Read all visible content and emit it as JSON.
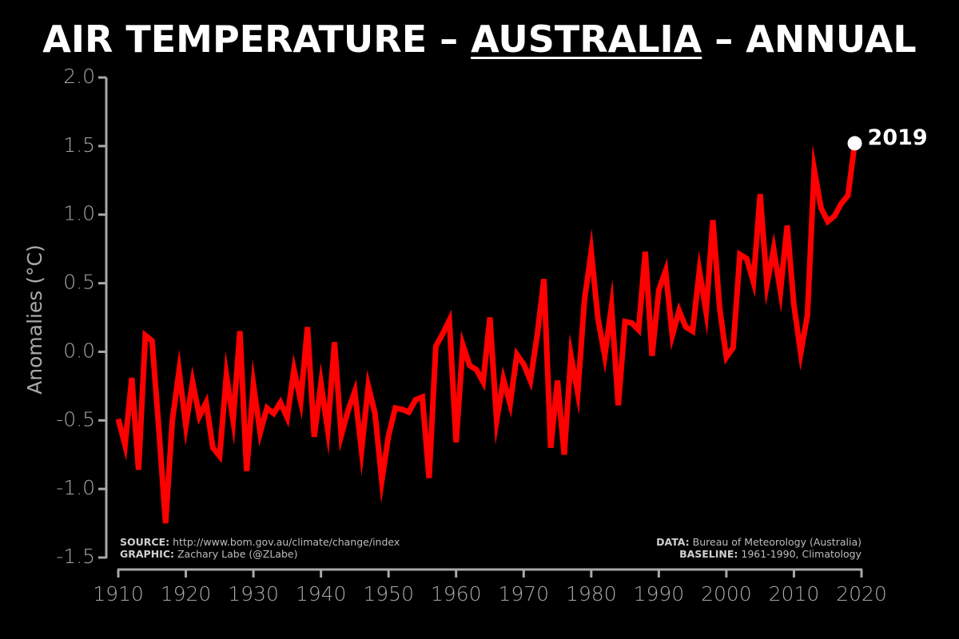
{
  "title": {
    "part1": "AIR TEMPERATURE – ",
    "part2": "AUSTRALIA",
    "part3": " – ANNUAL"
  },
  "credits": {
    "source_key": "SOURCE:",
    "source_val": " http://www.bom.gov.au/climate/change/index",
    "graphic_key": "GRAPHIC:",
    "graphic_val": " Zachary Labe (@ZLabe)",
    "data_key": "DATA:",
    "data_val": " Bureau of Meteorology (Australia)",
    "baseline_key": "BASELINE:",
    "baseline_val": " 1961-1990, Climatology"
  },
  "colors": {
    "background": "#000000",
    "line": "#ff0000",
    "axis": "#a9a9a9",
    "marker": "#ffffff"
  },
  "chart_data": {
    "type": "line",
    "title": "AIR TEMPERATURE – AUSTRALIA – ANNUAL",
    "xlabel": "",
    "ylabel": "Anomalies (°C)",
    "xlim": [
      1910,
      2020
    ],
    "ylim": [
      -1.5,
      2.0
    ],
    "xticks": [
      "1910",
      "1920",
      "1930",
      "1940",
      "1950",
      "1960",
      "1970",
      "1980",
      "1990",
      "2000",
      "2010",
      "2020"
    ],
    "yticks": [
      "-1.5",
      "-1.0",
      "-0.5",
      "0.0",
      "0.5",
      "1.0",
      "1.5",
      "2.0"
    ],
    "grid": false,
    "end_label": "2019",
    "series": [
      {
        "x": [
          1910,
          1911,
          1912,
          1913,
          1914,
          1915,
          1916,
          1917,
          1918,
          1919,
          1920,
          1921,
          1922,
          1923,
          1924,
          1925,
          1926,
          1927,
          1928,
          1929,
          1930,
          1931,
          1932,
          1933,
          1934,
          1935,
          1936,
          1937,
          1938,
          1939,
          1940,
          1941,
          1942,
          1943,
          1944,
          1945,
          1946,
          1947,
          1948,
          1949,
          1950,
          1951,
          1952,
          1953,
          1954,
          1955,
          1956,
          1957,
          1958,
          1959,
          1960,
          1961,
          1962,
          1963,
          1964,
          1965,
          1966,
          1967,
          1968,
          1969,
          1970,
          1971,
          1972,
          1973,
          1974,
          1975,
          1976,
          1977,
          1978,
          1979,
          1980,
          1981,
          1982,
          1983,
          1984,
          1985,
          1986,
          1987,
          1988,
          1989,
          1990,
          1991,
          1992,
          1993,
          1994,
          1995,
          1996,
          1997,
          1998,
          1999,
          2000,
          2001,
          2002,
          2003,
          2004,
          2005,
          2006,
          2007,
          2008,
          2009,
          2010,
          2011,
          2012,
          2013,
          2014,
          2015,
          2016,
          2017,
          2018,
          2019
        ],
        "values": [
          -0.49,
          -0.68,
          -0.19,
          -0.86,
          0.12,
          0.08,
          -0.56,
          -1.25,
          -0.5,
          -0.14,
          -0.54,
          -0.22,
          -0.47,
          -0.37,
          -0.7,
          -0.76,
          -0.17,
          -0.5,
          0.15,
          -0.87,
          -0.24,
          -0.59,
          -0.41,
          -0.45,
          -0.37,
          -0.48,
          -0.13,
          -0.36,
          0.18,
          -0.62,
          -0.23,
          -0.57,
          0.07,
          -0.61,
          -0.43,
          -0.29,
          -0.72,
          -0.25,
          -0.45,
          -0.94,
          -0.61,
          -0.41,
          -0.42,
          -0.44,
          -0.35,
          -0.33,
          -0.92,
          0.04,
          0.13,
          0.23,
          -0.66,
          0.05,
          -0.1,
          -0.13,
          -0.22,
          0.25,
          -0.5,
          -0.2,
          -0.38,
          -0.02,
          -0.09,
          -0.21,
          0.12,
          0.53,
          -0.7,
          -0.21,
          -0.75,
          -0.03,
          -0.3,
          0.38,
          0.73,
          0.24,
          -0.03,
          0.33,
          -0.39,
          0.22,
          0.21,
          0.16,
          0.73,
          -0.03,
          0.45,
          0.59,
          0.12,
          0.3,
          0.18,
          0.15,
          0.59,
          0.29,
          0.96,
          0.32,
          -0.04,
          0.03,
          0.71,
          0.68,
          0.51,
          1.15,
          0.49,
          0.75,
          0.44,
          0.92,
          0.34,
          -0.01,
          0.27,
          1.33,
          1.05,
          0.95,
          0.99,
          1.08,
          1.14,
          1.52
        ]
      }
    ]
  }
}
